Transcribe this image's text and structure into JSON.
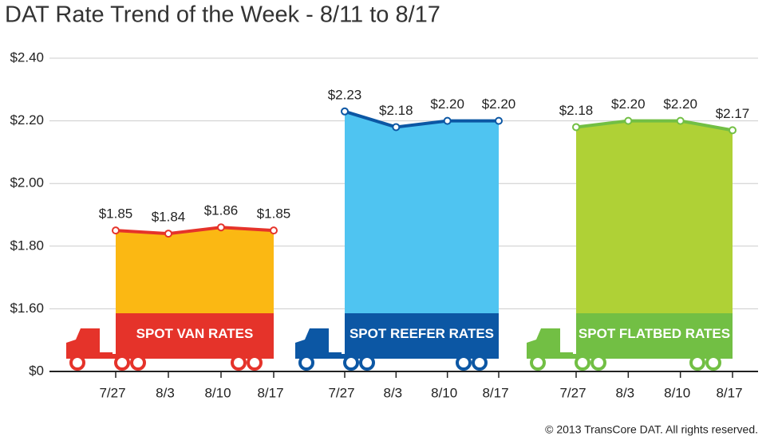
{
  "chart_data": {
    "type": "area",
    "title": "DAT Rate Trend of the Week - 8/11 to 8/17",
    "categories": [
      "7/27",
      "8/3",
      "8/10",
      "8/17"
    ],
    "series": [
      {
        "name": "SPOT VAN RATES",
        "color": "#e5332a",
        "fill": "#fbb813",
        "values": [
          1.85,
          1.84,
          1.86,
          1.85
        ],
        "value_labels": [
          "$1.85",
          "$1.84",
          "$1.86",
          "$1.85"
        ]
      },
      {
        "name": "SPOT REEFER RATES",
        "color": "#0c57a4",
        "fill": "#4fc4f1",
        "values": [
          2.23,
          2.18,
          2.2,
          2.2
        ],
        "value_labels": [
          "$2.23",
          "$2.18",
          "$2.20",
          "$2.20"
        ]
      },
      {
        "name": "SPOT FLATBED RATES",
        "color": "#72bf44",
        "fill": "#afd136",
        "values": [
          2.18,
          2.2,
          2.2,
          2.17
        ],
        "value_labels": [
          "$2.18",
          "$2.20",
          "$2.20",
          "$2.17"
        ]
      }
    ],
    "ylim": [
      0,
      2.4
    ],
    "axis_break": [
      0,
      1.4
    ],
    "yticks": [
      {
        "value": 0,
        "label": "$0"
      },
      {
        "value": 1.6,
        "label": "$1.60"
      },
      {
        "value": 1.8,
        "label": "$1.80"
      },
      {
        "value": 2.0,
        "label": "$2.00"
      },
      {
        "value": 2.2,
        "label": "$2.20"
      },
      {
        "value": 2.4,
        "label": "$2.40"
      }
    ],
    "grid": true,
    "copyright": "© 2013 TransCore DAT. All rights reserved."
  }
}
